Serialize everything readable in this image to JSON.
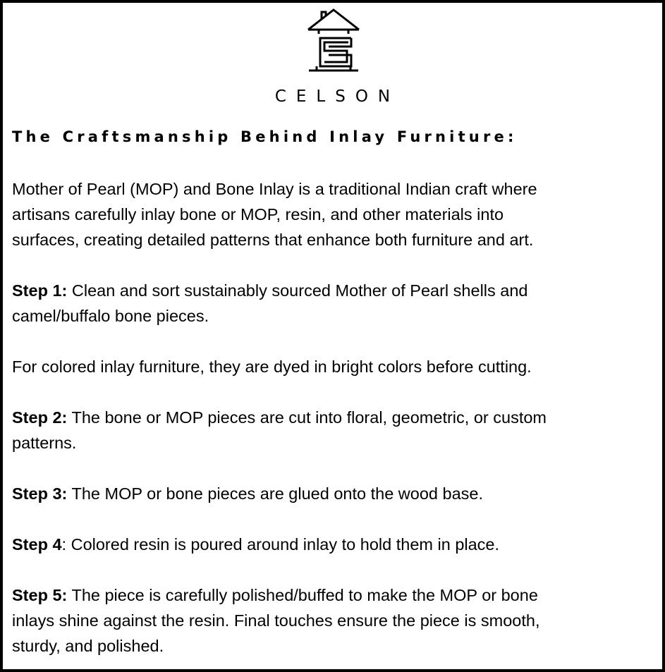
{
  "brand": {
    "name": "CELSON",
    "logo_icon": "house-s-logo-icon"
  },
  "heading": "The Craftsmanship Behind Inlay Furniture:",
  "intro": [
    "Mother of Pearl (MOP) and Bone Inlay is a traditional Indian craft where",
    "artisans carefully inlay bone or MOP, resin, and other materials into",
    "surfaces, creating detailed patterns that enhance both furniture and art."
  ],
  "steps": [
    {
      "label": "Step 1:",
      "suffix": "",
      "lines": [
        " Clean and sort sustainably sourced Mother of Pearl shells and",
        "camel/buffalo bone pieces."
      ]
    },
    {
      "note": "For colored inlay furniture, they are dyed in bright colors before cutting."
    },
    {
      "label": "Step 2:",
      "suffix": "",
      "lines": [
        " The bone or MOP pieces are cut into floral, geometric, or custom",
        "patterns."
      ]
    },
    {
      "label": "Step 3:",
      "suffix": "",
      "lines": [
        " The MOP or bone pieces are glued onto the wood base."
      ]
    },
    {
      "label": "Step 4",
      "suffix": ":",
      "lines": [
        " Colored resin is poured around inlay to hold them in place."
      ]
    },
    {
      "label": "Step 5:",
      "suffix": "",
      "lines": [
        " The piece is carefully polished/buffed to make the MOP or bone",
        "inlays shine against the resin. Final touches ensure the piece is smooth,",
        "sturdy, and polished."
      ]
    }
  ]
}
